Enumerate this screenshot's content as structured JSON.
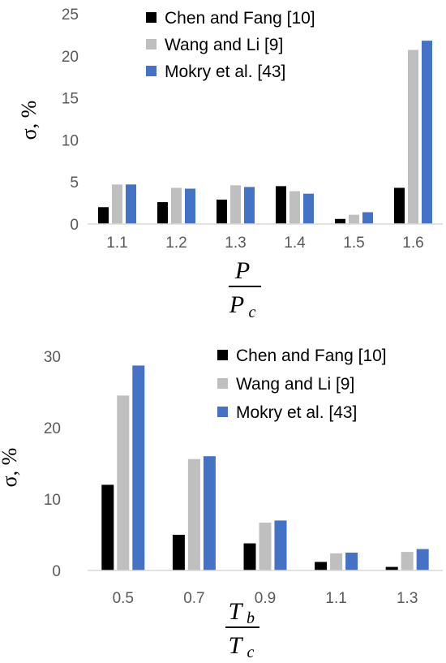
{
  "chart_data": [
    {
      "type": "bar",
      "categories": [
        "1.1",
        "1.2",
        "1.3",
        "1.4",
        "1.5",
        "1.6"
      ],
      "series": [
        {
          "name": "Chen and Fang [10]",
          "color": "#000000",
          "values": [
            2.0,
            2.6,
            2.9,
            4.5,
            0.6,
            4.3
          ]
        },
        {
          "name": "Wang and Li [9]",
          "color": "#bfbfbf",
          "values": [
            4.7,
            4.3,
            4.6,
            3.9,
            1.1,
            20.7
          ]
        },
        {
          "name": "Mokry et al. [43]",
          "color": "#4472c4",
          "values": [
            4.7,
            4.2,
            4.4,
            3.6,
            1.4,
            21.8
          ]
        }
      ],
      "ylabel": "σ, %",
      "xlabel_num": "P",
      "xlabel_den_main": "P",
      "xlabel_den_sub": "c",
      "ylim": [
        0,
        25
      ],
      "yticks": [
        "0",
        "5",
        "10",
        "15",
        "20",
        "25"
      ],
      "grid": false,
      "legend_position": "top-left"
    },
    {
      "type": "bar",
      "categories": [
        "0.5",
        "0.7",
        "0.9",
        "1.1",
        "1.3"
      ],
      "series": [
        {
          "name": "Chen and Fang [10]",
          "color": "#000000",
          "values": [
            12.0,
            5.0,
            3.8,
            1.2,
            0.5
          ]
        },
        {
          "name": "Wang and Li [9]",
          "color": "#bfbfbf",
          "values": [
            24.5,
            15.6,
            6.7,
            2.4,
            2.6
          ]
        },
        {
          "name": "Mokry et al. [43]",
          "color": "#4472c4",
          "values": [
            28.7,
            16.0,
            7.0,
            2.5,
            3.0
          ]
        }
      ],
      "ylabel": "σ, %",
      "xlabel_num_main": "T",
      "xlabel_num_sub": "b",
      "xlabel_den_main": "T",
      "xlabel_den_sub": "c",
      "ylim": [
        0,
        30
      ],
      "yticks": [
        "0",
        "10",
        "20",
        "30"
      ],
      "grid": false,
      "legend_position": "top-right"
    }
  ]
}
